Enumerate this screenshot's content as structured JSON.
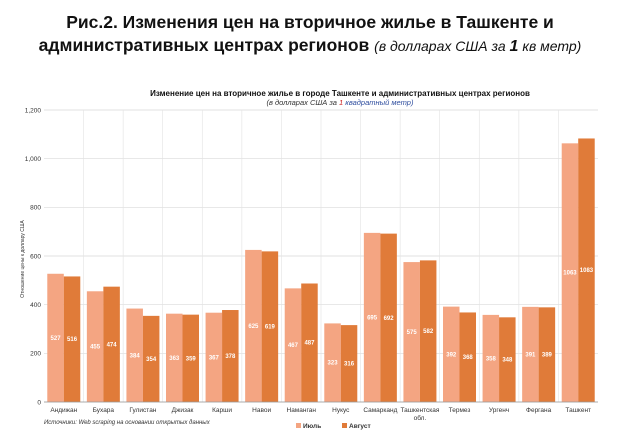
{
  "page": {
    "title_main": "Рис.2. Изменения цен на вторичное жилье в Ташкенте и административных центрах регионов",
    "title_sub_pre": "(в долларах США за ",
    "title_sub_num": "1",
    "title_sub_post": " кв метр)"
  },
  "chart_data": {
    "type": "bar",
    "title": "Изменение цен на вторичное жилье в городе Ташкенте и административных центрах регионов",
    "subtitle_pre": "(в долларах США за ",
    "subtitle_num": "1",
    "subtitle_post": " квадратный метр)",
    "ylabel": "Отношение цены к доллару США",
    "source": "Источники: Web scraping на основании открытых данных",
    "ylim": [
      0,
      1200
    ],
    "yticks": [
      "0",
      "200",
      "400",
      "600",
      "800",
      "1,000",
      "1,200"
    ],
    "grid": true,
    "legend_position": "bottom",
    "categories": [
      "Андижан",
      "Бухара",
      "Гулистан",
      "Джизак",
      "Карши",
      "Навои",
      "Наманган",
      "Нукус",
      "Самарканд",
      "Ташкентская обл.",
      "Термез",
      "Ургенч",
      "Фергана",
      "Ташкент"
    ],
    "series": [
      {
        "name": "Июль",
        "color": "#f4a582",
        "values": [
          527,
          455,
          384,
          363,
          367,
          625,
          467,
          323,
          695,
          575,
          392,
          358,
          391,
          1063
        ]
      },
      {
        "name": "Август",
        "color": "#e07b39",
        "values": [
          516,
          474,
          354,
          359,
          378,
          619,
          487,
          316,
          692,
          582,
          368,
          348,
          389,
          1083
        ]
      }
    ]
  }
}
